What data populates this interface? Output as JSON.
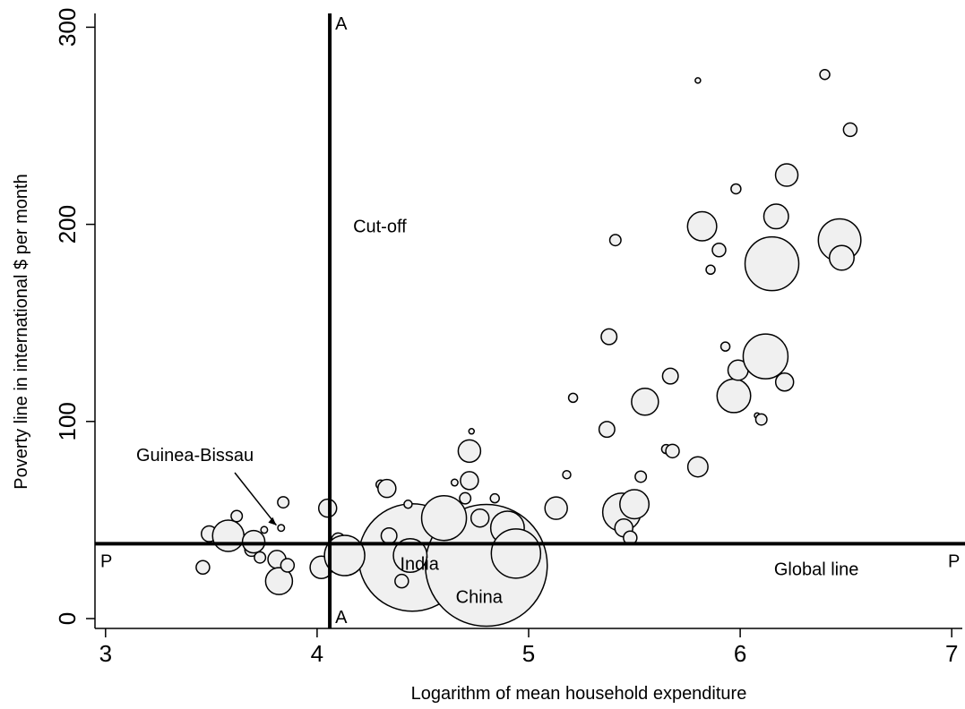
{
  "chart_data": {
    "type": "scatter",
    "xlabel": "Logarithm of mean household expenditure",
    "ylabel": "Poverty line in international $ per month",
    "xlim": [
      2.95,
      7.05
    ],
    "ylim": [
      -5,
      307
    ],
    "xticks": [
      3,
      4,
      5,
      6,
      7
    ],
    "yticks": [
      0,
      100,
      200,
      300
    ],
    "grid": false,
    "colors": {
      "bubble_fill": "#f0f0f0",
      "stroke": "#000000",
      "background": "#ffffff"
    },
    "reference_lines": [
      {
        "orientation": "vertical",
        "value": 4.06,
        "start_label": "A",
        "end_label": "A",
        "annotation": "Cut-off"
      },
      {
        "orientation": "horizontal",
        "value": 38,
        "start_label": "P",
        "end_label": "P",
        "annotation": "Global line"
      }
    ],
    "annotation_arrow": {
      "text": "Guinea-Bissau",
      "x": 3.82,
      "y": 46
    },
    "labeled_points": [
      {
        "name": "India",
        "x": 4.45,
        "y": 31
      },
      {
        "name": "China",
        "x": 4.8,
        "y": 27
      }
    ],
    "points": [
      {
        "x": 3.46,
        "y": 26,
        "s": 3
      },
      {
        "x": 3.49,
        "y": 43,
        "s": 3.5
      },
      {
        "x": 3.58,
        "y": 42,
        "s": 7
      },
      {
        "x": 3.62,
        "y": 52,
        "s": 2.5
      },
      {
        "x": 3.69,
        "y": 35,
        "s": 3
      },
      {
        "x": 3.7,
        "y": 39,
        "s": 5
      },
      {
        "x": 3.73,
        "y": 31,
        "s": 2.5
      },
      {
        "x": 3.75,
        "y": 45,
        "s": 1.5
      },
      {
        "x": 3.81,
        "y": 30,
        "s": 4
      },
      {
        "x": 3.82,
        "y": 19,
        "s": 6
      },
      {
        "x": 3.83,
        "y": 46,
        "s": 1.5
      },
      {
        "x": 3.84,
        "y": 59,
        "s": 2.5
      },
      {
        "x": 3.86,
        "y": 27,
        "s": 3
      },
      {
        "x": 4.02,
        "y": 26,
        "s": 5
      },
      {
        "x": 4.05,
        "y": 56,
        "s": 4
      },
      {
        "x": 4.1,
        "y": 40,
        "s": 3
      },
      {
        "x": 4.13,
        "y": 32,
        "s": 9
      },
      {
        "x": 4.3,
        "y": 68,
        "s": 2
      },
      {
        "x": 4.33,
        "y": 66,
        "s": 4
      },
      {
        "x": 4.34,
        "y": 42,
        "s": 3.5
      },
      {
        "x": 4.4,
        "y": 19,
        "s": 3
      },
      {
        "x": 4.43,
        "y": 58,
        "s": 1.8
      },
      {
        "x": 4.44,
        "y": 32,
        "s": 7.5
      },
      {
        "x": 4.6,
        "y": 51,
        "s": 10
      },
      {
        "x": 4.65,
        "y": 69,
        "s": 1.5
      },
      {
        "x": 4.7,
        "y": 61,
        "s": 2.5
      },
      {
        "x": 4.72,
        "y": 70,
        "s": 4
      },
      {
        "x": 4.72,
        "y": 85,
        "s": 5
      },
      {
        "x": 4.73,
        "y": 95,
        "s": 1.2
      },
      {
        "x": 4.77,
        "y": 51,
        "s": 4
      },
      {
        "x": 4.84,
        "y": 61,
        "s": 2
      },
      {
        "x": 4.9,
        "y": 46,
        "s": 7.5
      },
      {
        "x": 4.94,
        "y": 33,
        "s": 11
      },
      {
        "x": 5.13,
        "y": 56,
        "s": 5
      },
      {
        "x": 5.21,
        "y": 112,
        "s": 2
      },
      {
        "x": 5.18,
        "y": 73,
        "s": 1.8
      },
      {
        "x": 5.37,
        "y": 96,
        "s": 3.5
      },
      {
        "x": 5.38,
        "y": 143,
        "s": 3.5
      },
      {
        "x": 5.41,
        "y": 192,
        "s": 2.5
      },
      {
        "x": 5.44,
        "y": 54,
        "s": 8.5
      },
      {
        "x": 5.45,
        "y": 46,
        "s": 4
      },
      {
        "x": 5.48,
        "y": 41,
        "s": 3
      },
      {
        "x": 5.5,
        "y": 58,
        "s": 6.5
      },
      {
        "x": 5.53,
        "y": 72,
        "s": 2.5
      },
      {
        "x": 5.55,
        "y": 110,
        "s": 6
      },
      {
        "x": 5.65,
        "y": 86,
        "s": 2
      },
      {
        "x": 5.67,
        "y": 123,
        "s": 3.5
      },
      {
        "x": 5.68,
        "y": 85,
        "s": 3
      },
      {
        "x": 5.8,
        "y": 273,
        "s": 1.2
      },
      {
        "x": 5.8,
        "y": 77,
        "s": 4.5
      },
      {
        "x": 5.82,
        "y": 199,
        "s": 6.5
      },
      {
        "x": 5.86,
        "y": 177,
        "s": 2
      },
      {
        "x": 5.9,
        "y": 187,
        "s": 3
      },
      {
        "x": 5.93,
        "y": 138,
        "s": 2
      },
      {
        "x": 5.97,
        "y": 113,
        "s": 7.5
      },
      {
        "x": 5.98,
        "y": 218,
        "s": 2.2
      },
      {
        "x": 5.99,
        "y": 126,
        "s": 4.5
      },
      {
        "x": 6.08,
        "y": 103,
        "s": 1.2
      },
      {
        "x": 6.1,
        "y": 101,
        "s": 2.5
      },
      {
        "x": 6.12,
        "y": 133,
        "s": 10
      },
      {
        "x": 6.15,
        "y": 180,
        "s": 12
      },
      {
        "x": 6.17,
        "y": 204,
        "s": 5.5
      },
      {
        "x": 6.21,
        "y": 120,
        "s": 4
      },
      {
        "x": 6.22,
        "y": 225,
        "s": 5
      },
      {
        "x": 6.4,
        "y": 276,
        "s": 2.2
      },
      {
        "x": 6.47,
        "y": 192,
        "s": 9.5
      },
      {
        "x": 6.48,
        "y": 183,
        "s": 5.5
      },
      {
        "x": 6.52,
        "y": 248,
        "s": 3
      }
    ]
  }
}
